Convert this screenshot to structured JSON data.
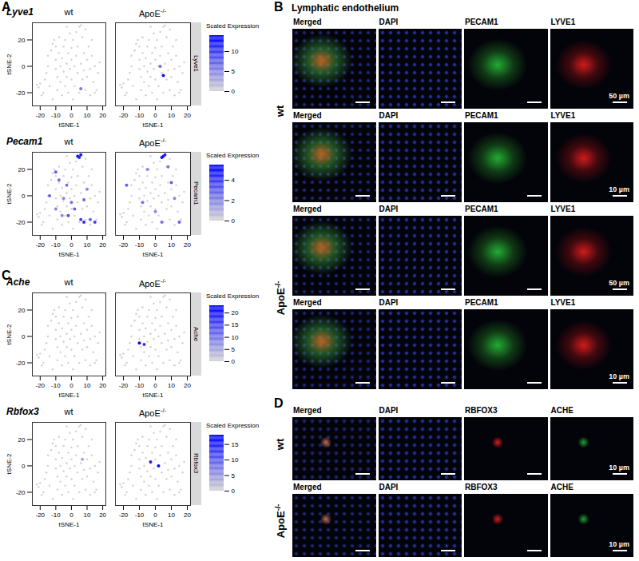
{
  "chart_data": [
    {
      "type": "scatter",
      "title": "Lyve1",
      "x_label": "tSNE-1",
      "y_label": "tSNE-2",
      "xlim": [
        -25,
        22
      ],
      "xticks": [
        -20,
        -10,
        0,
        10,
        20
      ],
      "ylim": [
        -30,
        33
      ],
      "yticks": [
        -20,
        0,
        20
      ],
      "grid": false,
      "marker": "dot",
      "colorbar": {
        "title": "Scaled Expression",
        "range": [
          0,
          14
        ],
        "ticks": [
          0,
          5,
          10
        ],
        "colors": [
          "#d3d3d3",
          "#0000ff"
        ]
      },
      "series": [
        {
          "name": "wt",
          "x": [
            6
          ],
          "y": [
            -17
          ],
          "values": [
            6
          ]
        },
        {
          "name": "ApoE-/-",
          "x": [
            5,
            3
          ],
          "y": [
            -7,
            0
          ],
          "values": [
            13,
            7
          ]
        }
      ]
    },
    {
      "type": "scatter",
      "title": "Pecam1",
      "x_label": "tSNE-1",
      "y_label": "tSNE-2",
      "xlim": [
        -25,
        22
      ],
      "xticks": [
        -20,
        -10,
        0,
        10,
        20
      ],
      "ylim": [
        -30,
        33
      ],
      "yticks": [
        -20,
        0,
        20
      ],
      "grid": false,
      "marker": "dot",
      "colorbar": {
        "title": "Scaled Expression",
        "range": [
          0,
          5.5
        ],
        "ticks": [
          0,
          2,
          4
        ],
        "colors": [
          "#d3d3d3",
          "#0000ff"
        ]
      },
      "series": [
        {
          "name": "wt",
          "x": [
            4,
            6,
            5,
            -10,
            -8,
            -14,
            -5,
            0,
            2,
            -6,
            8,
            10,
            -3,
            12,
            15,
            -10,
            -2,
            6,
            8
          ],
          "y": [
            30,
            31,
            29,
            18,
            12,
            0,
            -2,
            -5,
            -10,
            -15,
            -3,
            5,
            8,
            -18,
            -20,
            -10,
            -15,
            -18,
            -20
          ],
          "values": [
            5,
            5,
            4.5,
            3,
            2.5,
            3,
            2,
            2.5,
            3,
            2,
            3,
            2,
            2.5,
            3,
            4,
            2,
            3.5,
            4,
            4.5
          ]
        },
        {
          "name": "ApoE-/-",
          "x": [
            5,
            6,
            4,
            -18,
            -8,
            0,
            4,
            10,
            12,
            15,
            -5,
            8
          ],
          "y": [
            30,
            31,
            29,
            8,
            -5,
            -12,
            -20,
            10,
            -2,
            -20,
            20,
            22
          ],
          "values": [
            5,
            4.5,
            5,
            3,
            2.5,
            2,
            2.5,
            3,
            2,
            3,
            2,
            2.5
          ]
        }
      ]
    },
    {
      "type": "scatter",
      "title": "Ache",
      "x_label": "tSNE-1",
      "y_label": "tSNE-2",
      "xlim": [
        -25,
        22
      ],
      "xticks": [
        -20,
        -10,
        0,
        10,
        20
      ],
      "ylim": [
        -30,
        33
      ],
      "yticks": [
        -20,
        0,
        20
      ],
      "grid": false,
      "marker": "dot",
      "colorbar": {
        "title": "Scaled Expression",
        "range": [
          0,
          23
        ],
        "ticks": [
          0,
          5,
          10,
          15,
          20
        ],
        "colors": [
          "#d3d3d3",
          "#0000ff"
        ]
      },
      "series": [
        {
          "name": "wt",
          "x": [],
          "y": [],
          "values": []
        },
        {
          "name": "ApoE-/-",
          "x": [
            -10,
            -7
          ],
          "y": [
            -5,
            -6
          ],
          "values": [
            22,
            18
          ]
        }
      ]
    },
    {
      "type": "scatter",
      "title": "Rbfox3",
      "x_label": "tSNE-1",
      "y_label": "tSNE-2",
      "xlim": [
        -25,
        22
      ],
      "xticks": [
        -20,
        -10,
        0,
        10,
        20
      ],
      "ylim": [
        -30,
        33
      ],
      "yticks": [
        -20,
        0,
        20
      ],
      "grid": false,
      "marker": "dot",
      "colorbar": {
        "title": "Scaled Expression",
        "range": [
          0,
          18
        ],
        "ticks": [
          0,
          5,
          10,
          15
        ],
        "colors": [
          "#d3d3d3",
          "#0000ff"
        ]
      },
      "series": [
        {
          "name": "wt",
          "x": [
            7
          ],
          "y": [
            5
          ],
          "values": [
            4
          ]
        },
        {
          "name": "ApoE-/-",
          "x": [
            -3,
            2
          ],
          "y": [
            3,
            0
          ],
          "values": [
            15,
            17
          ]
        }
      ]
    }
  ],
  "tsne_cells": {
    "x": [
      -22,
      -21,
      -20,
      -19,
      -18,
      -17,
      -16,
      -15,
      -15,
      -14,
      -13,
      -12,
      -11,
      -10,
      -10,
      -10,
      -9,
      -9,
      -8,
      -8,
      -7,
      -7,
      -6,
      -6,
      -5,
      -5,
      -4,
      -4,
      -3,
      -3,
      -2,
      -2,
      -1,
      -1,
      0,
      0,
      0,
      1,
      1,
      2,
      2,
      3,
      3,
      4,
      4,
      5,
      5,
      6,
      6,
      7,
      7,
      8,
      8,
      9,
      9,
      10,
      10,
      11,
      12,
      12,
      13,
      14,
      15,
      16,
      15,
      17,
      18,
      -12,
      -3,
      13
    ],
    "y": [
      -14,
      -16,
      -13,
      -22,
      -20,
      -10,
      -5,
      0,
      8,
      -15,
      12,
      17,
      20,
      15,
      5,
      -2,
      -8,
      -18,
      22,
      10,
      0,
      -12,
      -22,
      6,
      15,
      -4,
      -15,
      20,
      2,
      -8,
      10,
      -20,
      25,
      -2,
      14,
      -10,
      5,
      -25,
      20,
      0,
      -15,
      8,
      26,
      -5,
      15,
      30,
      -20,
      31,
      2,
      -10,
      22,
      10,
      -3,
      -18,
      28,
      5,
      -8,
      15,
      -2,
      -22,
      8,
      -12,
      -20,
      -18,
      0,
      -5,
      3,
      -25,
      30,
      20
    ]
  },
  "figure": {
    "panel_labels": [
      "A",
      "B",
      "C",
      "D"
    ],
    "panel_b": {
      "title": "Lymphatic endothelium",
      "channels": [
        "Merged",
        "DAPI",
        "PECAM1",
        "LYVE1"
      ],
      "rows": [
        {
          "group": "wt",
          "scale_bar": "50 µm"
        },
        {
          "group": "wt",
          "scale_bar": "10 µm"
        },
        {
          "group": "ApoE-/-",
          "scale_bar": "50 µm"
        },
        {
          "group": "ApoE-/-",
          "scale_bar": "10 µm"
        }
      ]
    },
    "panel_d": {
      "channels": [
        "Merged",
        "DAPI",
        "RBFOX3",
        "ACHE"
      ],
      "rows": [
        {
          "group": "wt",
          "scale_bar": "10 µm"
        },
        {
          "group": "ApoE-/-",
          "scale_bar": "10 µm"
        }
      ]
    }
  }
}
